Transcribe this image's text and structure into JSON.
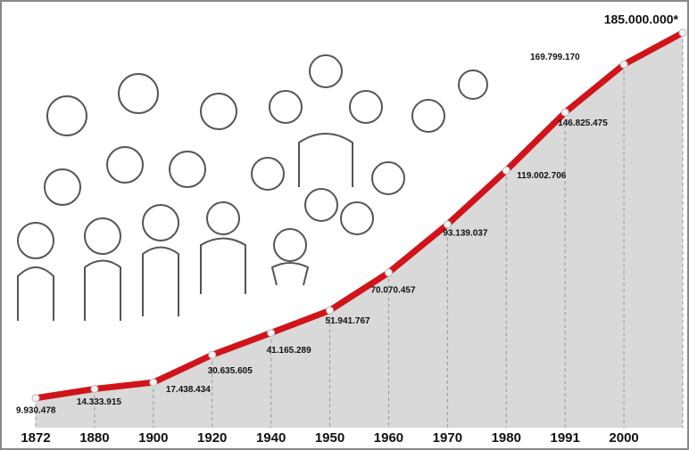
{
  "chart_data": {
    "type": "line",
    "categories": [
      "1872",
      "1880",
      "1900",
      "1920",
      "1940",
      "1950",
      "1960",
      "1970",
      "1980",
      "1991",
      "2000",
      null
    ],
    "values": [
      9930478,
      14333915,
      17438434,
      30635605,
      41165289,
      51941767,
      70070457,
      93139037,
      119002706,
      146825475,
      169799170,
      185000000
    ],
    "value_labels": [
      "9.930.478",
      "14.333.915",
      "17.438.434",
      "30.635.605",
      "41.165.289",
      "51.941.767",
      "70.070.457",
      "93.139.037",
      "119.002.706",
      "146.825.475",
      "169.799.170",
      "185.000.000*"
    ],
    "color": "#d0141a",
    "ylim": [
      0,
      190000000
    ]
  }
}
